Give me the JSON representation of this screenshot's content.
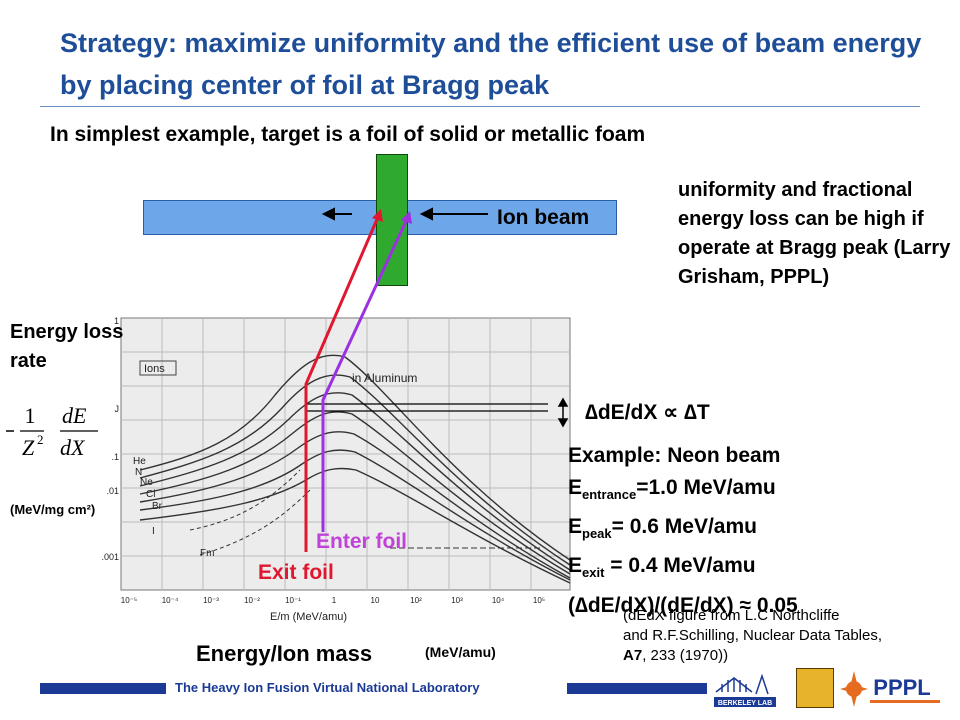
{
  "title": "Strategy: maximize uniformity and the efficient use of beam energy by placing center of foil at Bragg peak",
  "subtitle": "In simplest example, target is a foil of solid or metallic foam",
  "ion_beam_label": "Ion beam",
  "note": "uniformity and fractional energy loss can be high if operate at Bragg peak (Larry Grisham, PPPL)",
  "energy_loss_label": "Energy loss rate",
  "formula": "-1/Z² dE/dX",
  "units_left": "(MeV/mg cm²)",
  "ddx_relation": "∆dE/dX ∝ ∆T",
  "example": {
    "heading": "Example: Neon beam",
    "e_entrance_sym": "E",
    "e_entrance_sub": "entrance",
    "e_entrance_val": "=1.0 MeV/amu",
    "e_peak_sym": "E",
    "e_peak_sub": "peak",
    "e_peak_val": "= 0.6 MeV/amu",
    "e_exit_sym": "E",
    "e_exit_sub": "exit",
    "e_exit_val": " = 0.4 MeV/amu",
    "ratio": "(∆dE/dX)/(dE/dX) ≈ 0.05"
  },
  "citation_line1": "(dEdX figure from L.C Northcliffe",
  "citation_line2": "and R.F.Schilling, Nuclear Data Tables,",
  "citation_line3_bold": "A7",
  "citation_line3": ", 233 (1970))",
  "enter_foil_label": "Enter foil",
  "exit_foil_label": "Exit foil",
  "xlabel": "Energy/Ion mass",
  "xunits": "(MeV/amu)",
  "figure": {
    "ions_label": "Ions",
    "material_label": "in Aluminum",
    "curve_labels": [
      "He",
      "N",
      "Ne",
      "Cl",
      "Br",
      "I",
      "Fm"
    ],
    "y_ticks": [
      "1",
      "J",
      ".1",
      ".01",
      ".001"
    ],
    "x_ticks": [
      "10⁻⁵",
      "10⁻⁴",
      "10⁻³",
      "10⁻²",
      "10⁻¹",
      "1",
      "10",
      "10²",
      "10³",
      "10⁴",
      "10⁵"
    ],
    "axis_label": "E/m (MeV/amu)"
  },
  "footer_text": "The Heavy Ion Fusion Virtual National Laboratory",
  "logo_berkeley_text": "BERKELEY LAB",
  "logo_pppl_text": "PPPL",
  "colors": {
    "title": "#1f4e99",
    "beam": "#6ea6ea",
    "foil": "#2faa2f",
    "exit": "#e0182f",
    "enter": "#c042d8",
    "footer": "#1a3a95"
  }
}
